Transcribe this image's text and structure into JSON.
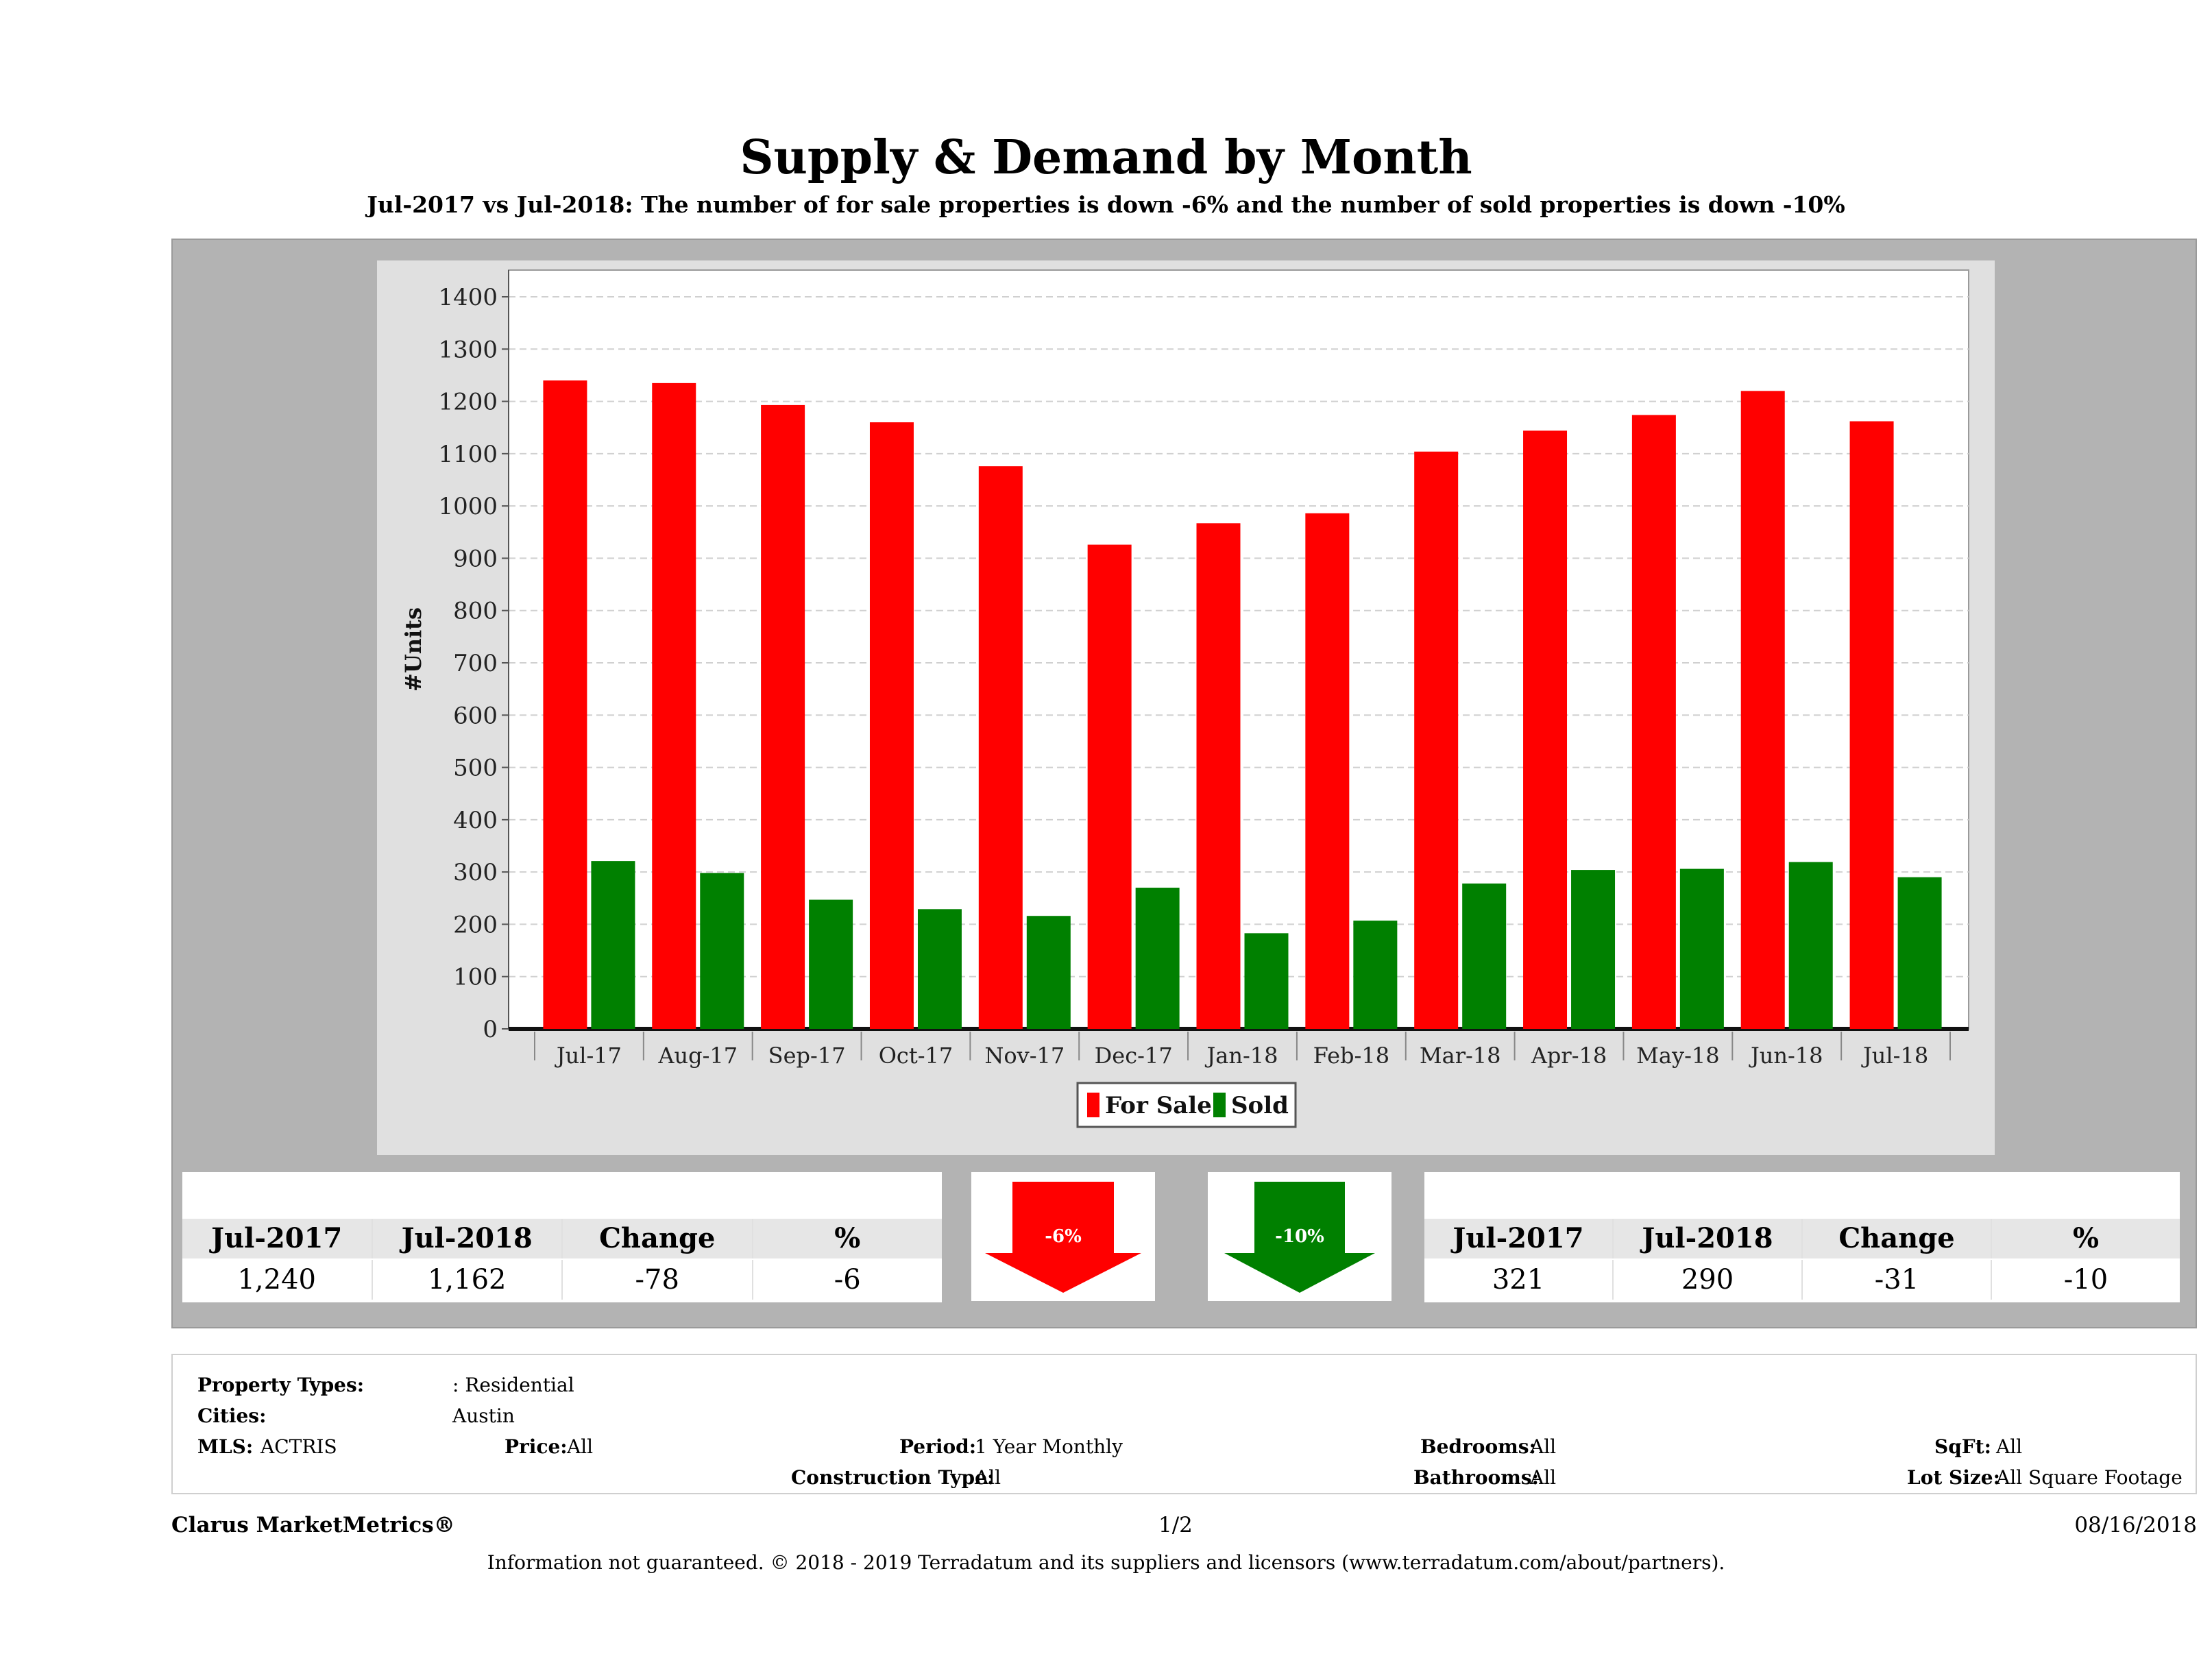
{
  "title": "Supply & Demand by Month",
  "subtitle": "Jul-2017 vs Jul-2018: The number of for sale properties is down -6% and the number of sold properties is down -10%",
  "chart_data": {
    "type": "bar",
    "categories": [
      "Jul-17",
      "Aug-17",
      "Sep-17",
      "Oct-17",
      "Nov-17",
      "Dec-17",
      "Jan-18",
      "Feb-18",
      "Mar-18",
      "Apr-18",
      "May-18",
      "Jun-18",
      "Jul-18"
    ],
    "series": [
      {
        "name": "For Sale",
        "color": "#ff0000",
        "values": [
          1240,
          1235,
          1193,
          1160,
          1076,
          926,
          967,
          986,
          1104,
          1144,
          1174,
          1220,
          1162
        ]
      },
      {
        "name": "Sold",
        "color": "#008000",
        "values": [
          321,
          298,
          247,
          229,
          216,
          270,
          183,
          207,
          278,
          304,
          306,
          319,
          290
        ]
      }
    ],
    "ylabel": "#Units",
    "ylim": [
      0,
      1400
    ],
    "yticks": [
      0,
      100,
      200,
      300,
      400,
      500,
      600,
      700,
      800,
      900,
      1000,
      1100,
      1200,
      1300,
      1400
    ],
    "grid": true,
    "legend": "bottom-center"
  },
  "for_sale_stats": {
    "headers": [
      "Jul-2017",
      "Jul-2018",
      "Change",
      "%"
    ],
    "values": [
      "1,240",
      "1,162",
      "-78",
      "-6"
    ]
  },
  "sold_stats": {
    "headers": [
      "Jul-2017",
      "Jul-2018",
      "Change",
      "%"
    ],
    "values": [
      "321",
      "290",
      "-31",
      "-10"
    ]
  },
  "for_sale_arrow": {
    "label": "-6%",
    "color": "#ff0000",
    "direction": "down"
  },
  "sold_arrow": {
    "label": "-10%",
    "color": "#008000",
    "direction": "down"
  },
  "filters": {
    "property_types_label": "Property Types:",
    "property_types_value": ": Residential",
    "cities_label": "Cities:",
    "cities_value": "Austin",
    "mls_label": "MLS:",
    "mls_value": "ACTRIS",
    "price_label": "Price:",
    "price_value": "All",
    "period_label": "Period:",
    "period_value": "1 Year Monthly",
    "construction_label": "Construction Type:",
    "construction_value": "All",
    "bedrooms_label": "Bedrooms:",
    "bedrooms_value": "All",
    "bathrooms_label": "Bathrooms:",
    "bathrooms_value": "All",
    "sqft_label": "SqFt:",
    "sqft_value": "All",
    "lotsize_label": "Lot Size:",
    "lotsize_value": "All Square Footage"
  },
  "footer": {
    "brand": "Clarus MarketMetrics®",
    "page": "1/2",
    "date": "08/16/2018",
    "disclaimer": "Information not guaranteed. © 2018 - 2019 Terradatum and its suppliers and licensors (www.terradatum.com/about/partners)."
  }
}
